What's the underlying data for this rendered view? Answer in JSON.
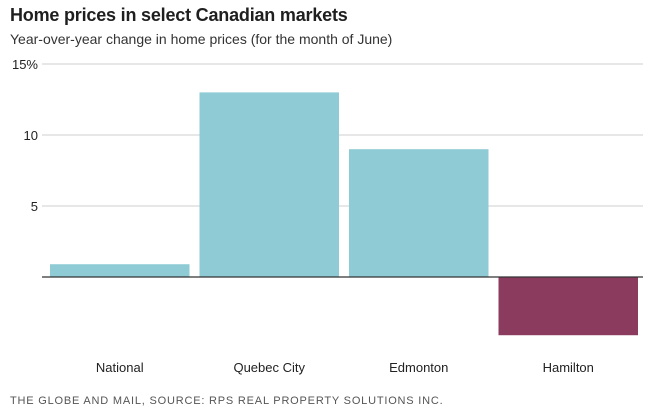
{
  "title": "Home prices in select Canadian markets",
  "subtitle": "Year-over-year change in home prices (for the month of June)",
  "source": "THE GLOBE AND MAIL, SOURCE: RPS REAL PROPERTY SOLUTIONS INC.",
  "colors": {
    "positive": "#8ecbd5",
    "negative": "#8b3c5e",
    "grid": "#cfcfcf",
    "baseline": "#333333",
    "text": "#222222"
  },
  "chart_data": {
    "type": "bar",
    "title": "Home prices in select Canadian markets",
    "subtitle": "Year-over-year change in home prices (for the month of June)",
    "categories": [
      "National",
      "Quebec City",
      "Edmonton",
      "Hamilton"
    ],
    "values": [
      0.9,
      13.0,
      9.0,
      -4.1
    ],
    "y_unit": "%",
    "ylim": [
      -5,
      15
    ],
    "y_ticks": [
      {
        "value": 15,
        "label": "15%"
      },
      {
        "value": 10,
        "label": "10"
      },
      {
        "value": 5,
        "label": "5"
      }
    ],
    "grid": true,
    "legend": "none"
  }
}
